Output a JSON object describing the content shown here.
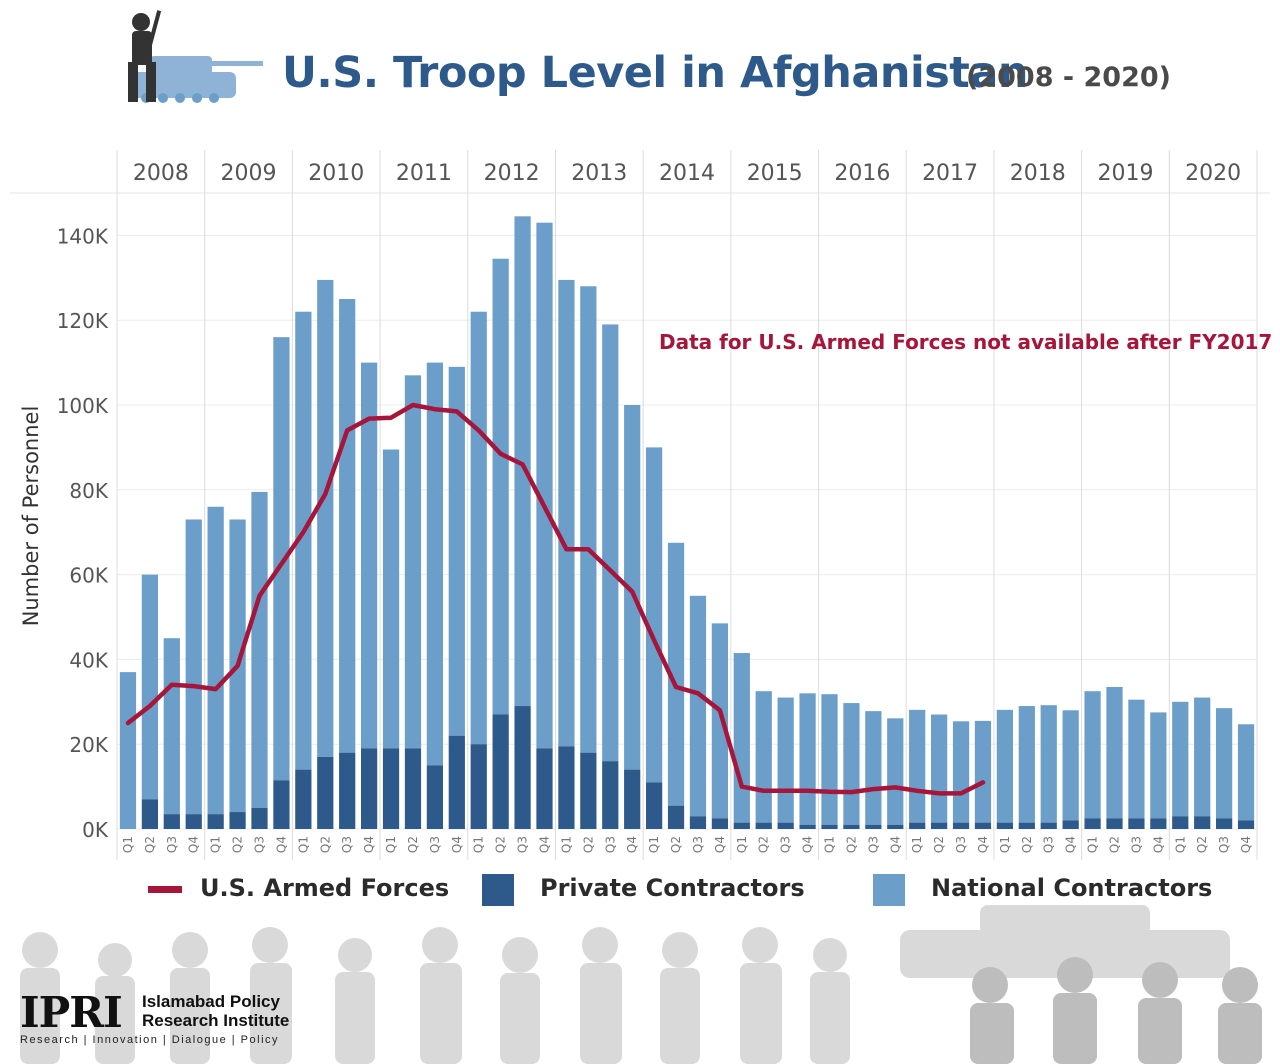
{
  "header": {
    "title": "U.S. Troop Level in Afghanistan",
    "subtitle": "(2008 - 2020)"
  },
  "annotation": "Data for U.S. Armed Forces not available after FY2017",
  "legend": {
    "armed": "U.S. Armed Forces",
    "private": "Private Contractors",
    "national": "National Contractors"
  },
  "logo": {
    "mark": "IPRI",
    "name_line1": "Islamabad Policy",
    "name_line2": "Research Institute",
    "tagline": "Research | Innovation | Dialogue | Policy"
  },
  "colors": {
    "national": "#6b9ec9",
    "private": "#2d5a8a",
    "armed": "#a6163a",
    "title": "#2d5a8a"
  },
  "chart_data": {
    "type": "bar",
    "stacked": true,
    "ylabel": "Number of Personnel",
    "ylim": [
      0,
      150000
    ],
    "yticks": [
      0,
      20000,
      40000,
      60000,
      80000,
      100000,
      120000,
      140000
    ],
    "ytick_labels": [
      "0K",
      "20K",
      "40K",
      "60K",
      "80K",
      "100K",
      "120K",
      "140K"
    ],
    "years": [
      "2008",
      "2009",
      "2010",
      "2011",
      "2012",
      "2013",
      "2014",
      "2015",
      "2016",
      "2017",
      "2018",
      "2019",
      "2020"
    ],
    "quarters": [
      "Q1",
      "Q2",
      "Q3",
      "Q4"
    ],
    "series": [
      {
        "name": "Private Contractors",
        "type": "bar",
        "values": [
          0,
          7000,
          3500,
          3500,
          3500,
          4000,
          5000,
          11500,
          14000,
          17000,
          18000,
          19000,
          19000,
          19000,
          15000,
          22000,
          20000,
          27000,
          29000,
          19000,
          19500,
          18000,
          16000,
          14000,
          11000,
          5500,
          3000,
          2500,
          1500,
          1500,
          1500,
          1000,
          1000,
          1000,
          1000,
          1000,
          1500,
          1500,
          1500,
          1500,
          1500,
          1500,
          1500,
          2000,
          2500,
          2500,
          2500,
          2500,
          3000,
          3000,
          2500,
          2000
        ]
      },
      {
        "name": "National Contractors",
        "type": "bar",
        "values": [
          37000,
          53000,
          41500,
          69500,
          72500,
          69000,
          74500,
          104500,
          108000,
          112500,
          107000,
          91000,
          70500,
          88000,
          95000,
          87000,
          102000,
          107500,
          115500,
          124000,
          110000,
          110000,
          103000,
          86000,
          79000,
          62000,
          52000,
          46000,
          40000,
          31000,
          29500,
          31000,
          30800,
          28700,
          26800,
          25100,
          26600,
          25500,
          23900,
          24000,
          26600,
          27500,
          27700,
          26000,
          30000,
          31000,
          28000,
          25000,
          27000,
          28000,
          26000,
          22700
        ]
      },
      {
        "name": "U.S. Armed Forces",
        "type": "line",
        "values": [
          25000,
          29000,
          34000,
          33700,
          33000,
          38500,
          55000,
          62500,
          70000,
          79000,
          94000,
          96800,
          97000,
          100000,
          99000,
          98500,
          94000,
          88500,
          86000,
          76000,
          66000,
          66000,
          61000,
          56000,
          44500,
          33500,
          32000,
          28000,
          10000,
          9000,
          9000,
          9000,
          8800,
          8700,
          9400,
          9800,
          9000,
          8400,
          8400,
          11000,
          null,
          null,
          null,
          null,
          null,
          null,
          null,
          null,
          null,
          null,
          null,
          null
        ]
      }
    ],
    "legend_position": "bottom",
    "grid": true
  }
}
